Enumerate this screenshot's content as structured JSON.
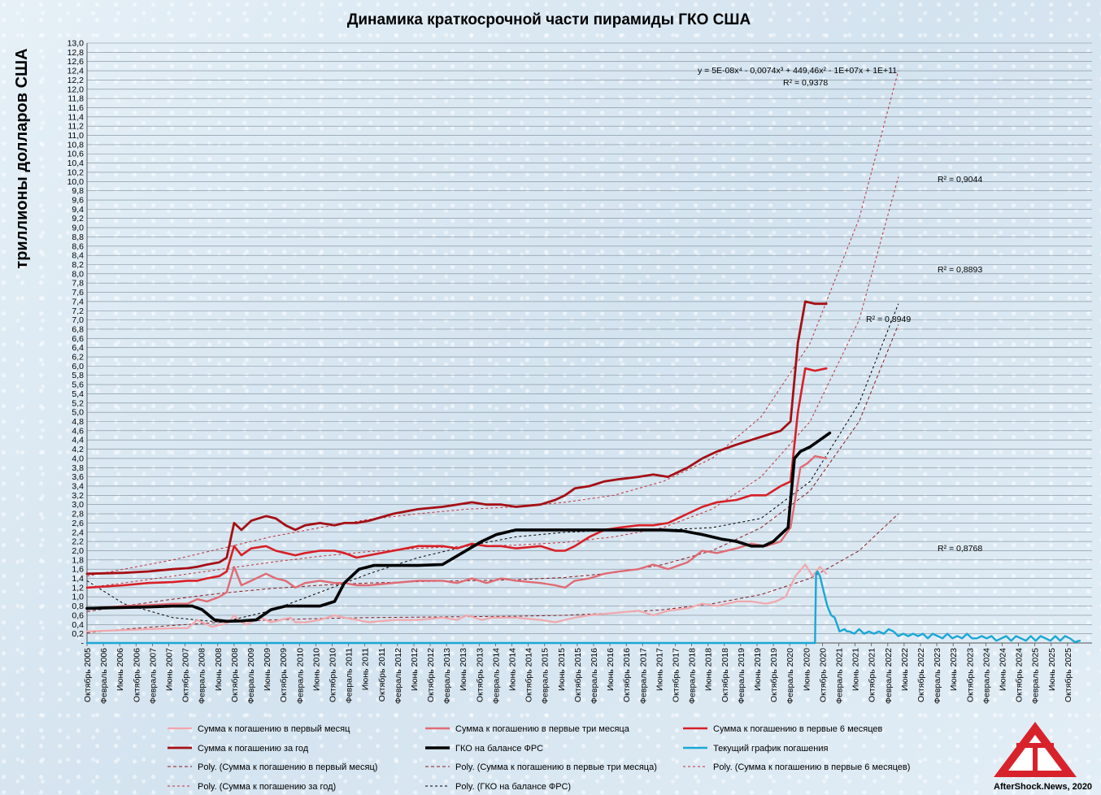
{
  "chart_data": {
    "type": "line",
    "title": "Динамика краткосрочной части пирамиды ГКО США",
    "ylabel": "триллионы долларов США",
    "ylim": [
      0,
      13
    ],
    "yticks": [
      "-",
      "0,2",
      "0,4",
      "0,6",
      "0,8",
      "1,0",
      "1,2",
      "1,4",
      "1,6",
      "1,8",
      "2,0",
      "2,2",
      "2,4",
      "2,6",
      "2,8",
      "3,0",
      "3,2",
      "3,4",
      "3,6",
      "3,8",
      "4,0",
      "4,2",
      "4,4",
      "4,6",
      "4,8",
      "5,0",
      "5,2",
      "5,4",
      "5,6",
      "5,8",
      "6,0",
      "6,2",
      "6,4",
      "6,6",
      "6,8",
      "7,0",
      "7,2",
      "7,4",
      "7,6",
      "7,8",
      "8,0",
      "8,2",
      "8,4",
      "8,6",
      "8,8",
      "9,0",
      "9,2",
      "9,4",
      "9,6",
      "9,8",
      "10,0",
      "10,2",
      "10,4",
      "10,6",
      "10,8",
      "11,0",
      "11,2",
      "11,4",
      "11,6",
      "11,8",
      "12,0",
      "12,2",
      "12,4",
      "12,6",
      "12,8",
      "13,0"
    ],
    "xlim": [
      2005.75,
      2026.25
    ],
    "x_ticks": [
      "Октябрь 2005",
      "Февраль 2006",
      "Июнь 2006",
      "Октябрь 2006",
      "Февраль 2007",
      "Июнь 2007",
      "Октябрь 2007",
      "Февраль 2008",
      "Июнь 2008",
      "Октябрь 2008",
      "Февраль 2009",
      "Июнь 2009",
      "Октябрь 2009",
      "Февраль 2010",
      "Июнь 2010",
      "Октябрь 2010",
      "Февраль 2011",
      "Июнь 2011",
      "Октябрь 2011",
      "Февраль 2012",
      "Июнь 2012",
      "Октябрь 2012",
      "Февраль 2013",
      "Июнь 2013",
      "Октябрь 2013",
      "Февраль 2014",
      "Июнь 2014",
      "Октябрь 2014",
      "Февраль 2015",
      "Июнь 2015",
      "Октябрь 2015",
      "Февраль 2016",
      "Июнь 2016",
      "Октябрь 2016",
      "Февраль 2017",
      "Июнь 2017",
      "Октябрь 2017",
      "Февраль 2018",
      "Июнь 2018",
      "Октябрь 2018",
      "Февраль 2019",
      "Июнь 2019",
      "Октябрь 2019",
      "Февраль 2020",
      "Июнь 2020",
      "Октябрь 2020",
      "Февраль 2021",
      "Июнь 2021",
      "Октябрь 2021",
      "Февраль 2022",
      "Июнь 2022",
      "Октябрь 2022",
      "Февраль 2023",
      "Июнь 2023",
      "Октябрь 2023",
      "Февраль 2024",
      "Июнь 2024",
      "Октябрь 2024",
      "Февраль 2025",
      "Июнь 2025",
      "Октябрь 2025"
    ],
    "series": [
      {
        "name": "Сумма к погашению в первый месяц",
        "color": "#f2a7ac",
        "width": 2.2,
        "x": [
          2005.75,
          2006.5,
          2007.0,
          2007.5,
          2007.8,
          2008.0,
          2008.3,
          2008.5,
          2008.65,
          2008.75,
          2008.9,
          2009.0,
          2009.3,
          2009.5,
          2009.7,
          2009.9,
          2010.0,
          2010.2,
          2010.5,
          2010.8,
          2011.0,
          2011.25,
          2011.5,
          2012.0,
          2012.5,
          2013.0,
          2013.3,
          2013.5,
          2013.8,
          2014.0,
          2014.5,
          2015.0,
          2015.3,
          2015.5,
          2015.7,
          2016.0,
          2016.5,
          2017.0,
          2017.3,
          2017.6,
          2018.0,
          2018.3,
          2018.6,
          2019.0,
          2019.3,
          2019.6,
          2019.8,
          2020.0,
          2020.2,
          2020.4,
          2020.55,
          2020.7,
          2020.83
        ],
        "y": [
          0.25,
          0.28,
          0.3,
          0.32,
          0.32,
          0.5,
          0.35,
          0.4,
          0.45,
          0.6,
          0.45,
          0.4,
          0.55,
          0.45,
          0.5,
          0.55,
          0.45,
          0.45,
          0.5,
          0.6,
          0.55,
          0.5,
          0.45,
          0.5,
          0.5,
          0.55,
          0.5,
          0.6,
          0.5,
          0.55,
          0.55,
          0.5,
          0.45,
          0.5,
          0.55,
          0.6,
          0.65,
          0.7,
          0.6,
          0.7,
          0.75,
          0.85,
          0.8,
          0.9,
          0.9,
          0.85,
          0.9,
          1.0,
          1.45,
          1.7,
          1.45,
          1.65,
          1.5
        ]
      },
      {
        "name": "Сумма к погашению в первые три месяца",
        "color": "#e06a73",
        "width": 2.4,
        "x": [
          2005.75,
          2006.5,
          2007.0,
          2007.5,
          2007.8,
          2008.0,
          2008.2,
          2008.45,
          2008.6,
          2008.75,
          2008.9,
          2009.1,
          2009.4,
          2009.6,
          2009.8,
          2010.0,
          2010.2,
          2010.5,
          2010.8,
          2011.0,
          2011.25,
          2011.5,
          2012.0,
          2012.5,
          2013.0,
          2013.3,
          2013.6,
          2013.9,
          2014.2,
          2014.5,
          2015.0,
          2015.3,
          2015.5,
          2015.7,
          2016.0,
          2016.3,
          2016.6,
          2017.0,
          2017.3,
          2017.6,
          2018.0,
          2018.3,
          2018.6,
          2019.0,
          2019.3,
          2019.6,
          2019.9,
          2020.1,
          2020.3,
          2020.45,
          2020.6,
          2020.83
        ],
        "y": [
          0.75,
          0.8,
          0.82,
          0.85,
          0.85,
          0.95,
          0.9,
          1.0,
          1.1,
          1.65,
          1.25,
          1.35,
          1.5,
          1.4,
          1.35,
          1.2,
          1.3,
          1.35,
          1.3,
          1.3,
          1.25,
          1.25,
          1.3,
          1.35,
          1.35,
          1.3,
          1.4,
          1.3,
          1.4,
          1.35,
          1.3,
          1.25,
          1.2,
          1.35,
          1.4,
          1.5,
          1.55,
          1.6,
          1.7,
          1.6,
          1.75,
          2.0,
          1.95,
          2.05,
          2.15,
          2.1,
          2.2,
          2.5,
          3.8,
          3.9,
          4.05,
          4.0
        ]
      },
      {
        "name": "Сумма к погашению в первые 6 месяцев",
        "color": "#d81f26",
        "width": 2.6,
        "x": [
          2005.75,
          2006.5,
          2007.0,
          2007.5,
          2007.8,
          2008.0,
          2008.2,
          2008.45,
          2008.6,
          2008.75,
          2008.9,
          2009.1,
          2009.4,
          2009.6,
          2009.8,
          2010.0,
          2010.2,
          2010.5,
          2010.8,
          2011.0,
          2011.25,
          2011.5,
          2012.0,
          2012.5,
          2013.0,
          2013.3,
          2013.6,
          2013.9,
          2014.2,
          2014.5,
          2015.0,
          2015.3,
          2015.5,
          2015.7,
          2016.0,
          2016.3,
          2016.6,
          2017.0,
          2017.3,
          2017.6,
          2018.0,
          2018.3,
          2018.6,
          2019.0,
          2019.3,
          2019.6,
          2019.9,
          2020.1,
          2020.25,
          2020.4,
          2020.6,
          2020.83
        ],
        "y": [
          1.2,
          1.25,
          1.3,
          1.32,
          1.35,
          1.35,
          1.4,
          1.45,
          1.55,
          2.1,
          1.9,
          2.05,
          2.1,
          2.0,
          1.95,
          1.9,
          1.95,
          2.0,
          2.0,
          1.95,
          1.85,
          1.9,
          2.0,
          2.1,
          2.1,
          2.05,
          2.15,
          2.1,
          2.1,
          2.05,
          2.1,
          2.0,
          2.0,
          2.1,
          2.3,
          2.45,
          2.5,
          2.55,
          2.55,
          2.6,
          2.8,
          2.95,
          3.05,
          3.1,
          3.2,
          3.2,
          3.4,
          3.5,
          5.0,
          5.95,
          5.9,
          5.95
        ]
      },
      {
        "name": "Сумма к погашению за год",
        "color": "#a50f15",
        "width": 2.8,
        "x": [
          2005.75,
          2006.5,
          2007.0,
          2007.5,
          2007.8,
          2008.0,
          2008.2,
          2008.45,
          2008.6,
          2008.75,
          2008.9,
          2009.1,
          2009.4,
          2009.6,
          2009.8,
          2010.0,
          2010.2,
          2010.5,
          2010.8,
          2011.0,
          2011.25,
          2011.5,
          2012.0,
          2012.5,
          2013.0,
          2013.3,
          2013.6,
          2013.9,
          2014.2,
          2014.5,
          2015.0,
          2015.3,
          2015.5,
          2015.7,
          2016.0,
          2016.3,
          2016.6,
          2017.0,
          2017.3,
          2017.6,
          2018.0,
          2018.3,
          2018.6,
          2019.0,
          2019.3,
          2019.6,
          2019.9,
          2020.1,
          2020.25,
          2020.4,
          2020.6,
          2020.83
        ],
        "y": [
          1.5,
          1.52,
          1.55,
          1.6,
          1.62,
          1.65,
          1.7,
          1.75,
          1.85,
          2.6,
          2.45,
          2.65,
          2.75,
          2.7,
          2.55,
          2.45,
          2.55,
          2.6,
          2.55,
          2.6,
          2.6,
          2.65,
          2.8,
          2.9,
          2.95,
          3.0,
          3.05,
          3.0,
          3.0,
          2.95,
          3.0,
          3.1,
          3.2,
          3.35,
          3.4,
          3.5,
          3.55,
          3.6,
          3.65,
          3.6,
          3.8,
          4.0,
          4.15,
          4.3,
          4.4,
          4.5,
          4.6,
          4.8,
          6.5,
          7.4,
          7.35,
          7.35
        ]
      },
      {
        "name": "ГКО на балансе ФРС",
        "color": "#000000",
        "width": 3.6,
        "x": [
          2005.75,
          2006.5,
          2007.0,
          2007.5,
          2007.9,
          2008.1,
          2008.35,
          2008.6,
          2008.9,
          2009.2,
          2009.5,
          2009.8,
          2010.1,
          2010.5,
          2010.8,
          2011.0,
          2011.3,
          2011.6,
          2012.0,
          2012.5,
          2013.0,
          2013.4,
          2013.8,
          2014.1,
          2014.5,
          2015.0,
          2015.5,
          2016.0,
          2016.5,
          2017.0,
          2017.5,
          2017.9,
          2018.3,
          2018.7,
          2019.0,
          2019.3,
          2019.55,
          2019.75,
          2019.9,
          2020.05,
          2020.18,
          2020.3,
          2020.5,
          2020.7,
          2020.9
        ],
        "y": [
          0.75,
          0.77,
          0.78,
          0.8,
          0.8,
          0.72,
          0.5,
          0.47,
          0.48,
          0.5,
          0.72,
          0.8,
          0.8,
          0.8,
          0.9,
          1.3,
          1.6,
          1.68,
          1.68,
          1.68,
          1.7,
          1.95,
          2.2,
          2.35,
          2.45,
          2.45,
          2.45,
          2.45,
          2.45,
          2.45,
          2.45,
          2.43,
          2.35,
          2.25,
          2.2,
          2.1,
          2.1,
          2.2,
          2.35,
          2.5,
          4.0,
          4.15,
          4.25,
          4.4,
          4.55
        ]
      },
      {
        "name": "Текущий график погашения",
        "color": "#1aa7d6",
        "width": 2.4,
        "x": [
          2005.75,
          2020.6,
          2020.62,
          2020.65,
          2020.7,
          2020.78,
          2020.85,
          2020.93,
          2021.0,
          2021.1,
          2021.2,
          2021.25,
          2021.3,
          2021.4,
          2021.5,
          2021.6,
          2021.7,
          2021.8,
          2021.9,
          2022.0,
          2022.1,
          2022.2,
          2022.3,
          2022.4,
          2022.5,
          2022.6,
          2022.7,
          2022.8,
          2022.9,
          2023.0,
          2023.1,
          2023.2,
          2023.3,
          2023.4,
          2023.5,
          2023.6,
          2023.7,
          2023.8,
          2023.9,
          2024.0,
          2024.1,
          2024.2,
          2024.3,
          2024.4,
          2024.5,
          2024.6,
          2024.7,
          2024.8,
          2024.9,
          2025.0,
          2025.1,
          2025.2,
          2025.3,
          2025.4,
          2025.5,
          2025.6,
          2025.7,
          2025.8,
          2025.9,
          2026.0
        ],
        "y": [
          0.0,
          0.0,
          1.5,
          1.55,
          1.45,
          1.1,
          0.8,
          0.6,
          0.55,
          0.25,
          0.3,
          0.25,
          0.25,
          0.2,
          0.3,
          0.2,
          0.25,
          0.2,
          0.25,
          0.2,
          0.3,
          0.25,
          0.15,
          0.2,
          0.15,
          0.2,
          0.15,
          0.2,
          0.1,
          0.2,
          0.15,
          0.1,
          0.2,
          0.1,
          0.15,
          0.1,
          0.2,
          0.1,
          0.1,
          0.15,
          0.1,
          0.15,
          0.05,
          0.1,
          0.15,
          0.05,
          0.15,
          0.1,
          0.05,
          0.15,
          0.05,
          0.15,
          0.1,
          0.05,
          0.15,
          0.05,
          0.15,
          0.1,
          0.02,
          0.05
        ]
      }
    ],
    "trendlines": [
      {
        "name": "Poly. (Сумма к погашению в первый месяц)",
        "color": "#8a1a20",
        "dash": "4,3",
        "x": [
          2005.75,
          2006.5,
          2007.5,
          2008.5,
          2009.5,
          2010.5,
          2011.5,
          2012.5,
          2013.5,
          2014.5,
          2015.5,
          2016.5,
          2017.5,
          2018.5,
          2019.5,
          2020.5,
          2021.5,
          2022.3
        ],
        "y": [
          0.22,
          0.3,
          0.38,
          0.45,
          0.5,
          0.53,
          0.55,
          0.56,
          0.57,
          0.58,
          0.6,
          0.65,
          0.72,
          0.85,
          1.05,
          1.4,
          2.0,
          2.8
        ]
      },
      {
        "name": "Poly. (Сумма к погашению в первые три месяца)",
        "color": "#8a1a20",
        "dash": "4,3",
        "x": [
          2005.75,
          2006.5,
          2007.5,
          2008.5,
          2009.5,
          2010.5,
          2011.5,
          2012.5,
          2013.5,
          2014.5,
          2015.5,
          2016.5,
          2017.5,
          2018.5,
          2019.5,
          2020.5,
          2021.5,
          2022.3
        ],
        "y": [
          0.68,
          0.8,
          0.95,
          1.08,
          1.18,
          1.25,
          1.3,
          1.33,
          1.35,
          1.37,
          1.42,
          1.52,
          1.7,
          2.0,
          2.5,
          3.3,
          4.8,
          6.9
        ]
      },
      {
        "name": "Poly. (Сумма к погашению в первые 6 месяцев)",
        "color": "#c0303a",
        "dash": "3,3",
        "x": [
          2005.75,
          2006.5,
          2007.5,
          2008.5,
          2009.5,
          2010.5,
          2011.5,
          2012.5,
          2013.5,
          2014.5,
          2015.5,
          2016.5,
          2017.5,
          2018.5,
          2019.5,
          2020.5,
          2021.5,
          2022.3
        ],
        "y": [
          1.2,
          1.3,
          1.45,
          1.6,
          1.75,
          1.88,
          1.98,
          2.05,
          2.1,
          2.12,
          2.18,
          2.3,
          2.5,
          2.9,
          3.6,
          4.8,
          7.0,
          10.1
        ]
      },
      {
        "name": "Poly. (Сумма к погашению за год)",
        "color": "#c0303a",
        "dash": "3,3",
        "x": [
          2005.75,
          2006.5,
          2007.5,
          2008.5,
          2009.5,
          2010.5,
          2011.5,
          2012.5,
          2013.5,
          2014.5,
          2015.5,
          2016.5,
          2017.5,
          2018.5,
          2019.5,
          2020.5,
          2021.5,
          2022.3
        ],
        "y": [
          1.45,
          1.6,
          1.8,
          2.05,
          2.3,
          2.5,
          2.68,
          2.8,
          2.9,
          2.95,
          3.05,
          3.2,
          3.5,
          4.0,
          4.9,
          6.5,
          9.2,
          12.4
        ]
      },
      {
        "name": "Poly. (ГКО на балансе ФРС)",
        "color": "#000000",
        "dash": "3,3",
        "x": [
          2005.75,
          2006.5,
          2007.5,
          2008.5,
          2009.5,
          2010.5,
          2011.5,
          2012.5,
          2013.5,
          2014.5,
          2015.5,
          2016.5,
          2017.5,
          2018.5,
          2019.5,
          2020.5,
          2021.5,
          2022.3
        ],
        "y": [
          1.35,
          0.85,
          0.55,
          0.45,
          0.7,
          1.1,
          1.5,
          1.85,
          2.1,
          2.3,
          2.4,
          2.45,
          2.45,
          2.5,
          2.7,
          3.5,
          5.2,
          7.35
        ]
      }
    ],
    "annotations": {
      "equation": "y = 5E-08x⁴ - 0,0074x³ + 449,46x² - 1E+07x + 1E+11",
      "r2_top": "R² = 0,9378",
      "r2_a": "R² = 0,9044",
      "r2_b": "R² = 0,8893",
      "r2_c": "R² = 0,8949",
      "r2_d": "R² = 0,8768"
    },
    "legend_placement": "bottom",
    "grid": true
  },
  "brand": {
    "text": "AfterShock.News, 2020",
    "logo_colors": [
      "#d8222b",
      "#ffffff"
    ]
  }
}
